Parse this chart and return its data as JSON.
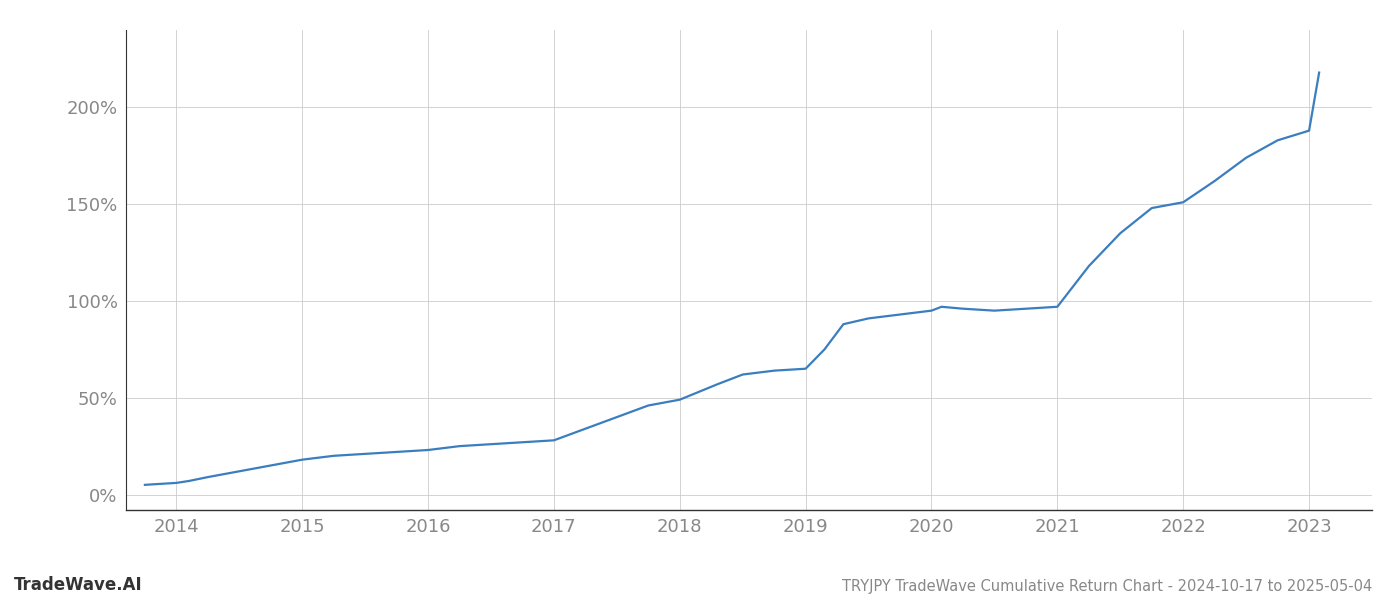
{
  "title": "TRYJPY TradeWave Cumulative Return Chart - 2024-10-17 to 2025-05-04",
  "watermark": "TradeWave.AI",
  "line_color": "#3a7ebf",
  "background_color": "#ffffff",
  "grid_color": "#cccccc",
  "axis_color": "#888888",
  "spine_color": "#333333",
  "x_years": [
    2014,
    2015,
    2016,
    2017,
    2018,
    2019,
    2020,
    2021,
    2022,
    2023
  ],
  "x_data": [
    2013.75,
    2014.0,
    2014.1,
    2014.25,
    2014.5,
    2014.75,
    2015.0,
    2015.25,
    2015.5,
    2015.75,
    2016.0,
    2016.25,
    2016.5,
    2016.75,
    2017.0,
    2017.25,
    2017.5,
    2017.75,
    2018.0,
    2018.15,
    2018.3,
    2018.5,
    2018.75,
    2019.0,
    2019.15,
    2019.3,
    2019.5,
    2019.75,
    2020.0,
    2020.08,
    2020.25,
    2020.5,
    2020.75,
    2021.0,
    2021.25,
    2021.5,
    2021.75,
    2022.0,
    2022.25,
    2022.5,
    2022.75,
    2023.0,
    2023.08
  ],
  "y_data": [
    5,
    6,
    7,
    9,
    12,
    15,
    18,
    20,
    21,
    22,
    23,
    25,
    26,
    27,
    28,
    34,
    40,
    46,
    49,
    53,
    57,
    62,
    64,
    65,
    75,
    88,
    91,
    93,
    95,
    97,
    96,
    95,
    96,
    97,
    118,
    135,
    148,
    151,
    162,
    174,
    183,
    188,
    218
  ],
  "yticks": [
    0,
    50,
    100,
    150,
    200
  ],
  "ylim": [
    -8,
    240
  ],
  "xlim": [
    2013.6,
    2023.5
  ],
  "title_fontsize": 10.5,
  "tick_fontsize": 13,
  "watermark_fontsize": 12,
  "line_width": 1.6
}
